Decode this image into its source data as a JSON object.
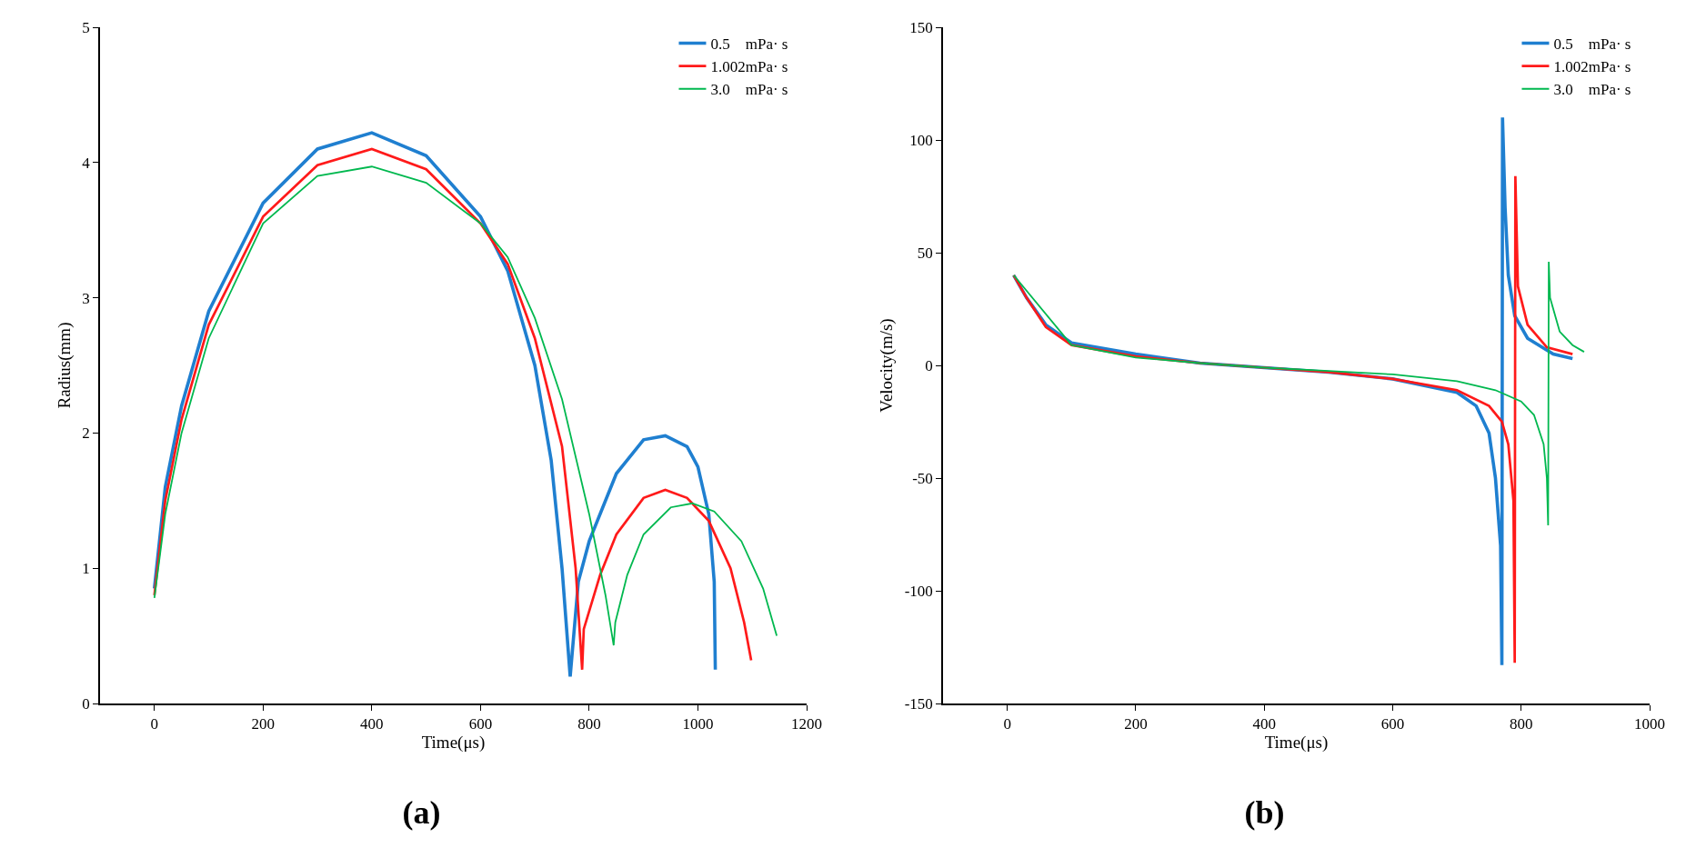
{
  "chart_data": [
    {
      "type": "line",
      "title": "(a)",
      "xlabel": "Time(μs)",
      "ylabel": "Radius(mm)",
      "xlim": [
        -100,
        1200
      ],
      "xticks": [
        0,
        200,
        400,
        600,
        800,
        1000,
        1200
      ],
      "ylim": [
        0,
        5
      ],
      "yticks": [
        0,
        1,
        2,
        3,
        4,
        5
      ],
      "grid": false,
      "legend": "top right",
      "marker": "none",
      "line_style": "solid",
      "series": [
        {
          "name": "0.5    mPa· s",
          "color": "#1f7fd0",
          "x": [
            0,
            20,
            50,
            100,
            200,
            300,
            400,
            500,
            600,
            650,
            700,
            730,
            750,
            765,
            780,
            800,
            850,
            900,
            940,
            980,
            1000,
            1020,
            1030,
            1032
          ],
          "values": [
            0.85,
            1.6,
            2.2,
            2.9,
            3.7,
            4.1,
            4.22,
            4.05,
            3.6,
            3.2,
            2.5,
            1.8,
            1.0,
            0.2,
            0.9,
            1.2,
            1.7,
            1.95,
            1.98,
            1.9,
            1.75,
            1.4,
            0.9,
            0.25
          ]
        },
        {
          "name": "1.002mPa· s",
          "color": "#ff1a1a",
          "x": [
            0,
            20,
            50,
            100,
            200,
            300,
            400,
            500,
            600,
            650,
            700,
            750,
            775,
            787,
            790,
            820,
            850,
            900,
            940,
            980,
            1020,
            1060,
            1085,
            1098
          ],
          "values": [
            0.8,
            1.5,
            2.1,
            2.8,
            3.6,
            3.98,
            4.1,
            3.95,
            3.55,
            3.25,
            2.7,
            1.9,
            1.0,
            0.25,
            0.55,
            0.95,
            1.25,
            1.52,
            1.58,
            1.52,
            1.35,
            1.0,
            0.6,
            0.32
          ]
        },
        {
          "name": "3.0    mPa· s",
          "color": "#00b84f",
          "x": [
            0,
            20,
            50,
            100,
            200,
            300,
            400,
            500,
            600,
            650,
            700,
            750,
            800,
            830,
            845,
            848,
            870,
            900,
            950,
            990,
            1030,
            1080,
            1120,
            1145
          ],
          "values": [
            0.78,
            1.4,
            2.0,
            2.7,
            3.55,
            3.9,
            3.97,
            3.85,
            3.55,
            3.3,
            2.85,
            2.25,
            1.4,
            0.8,
            0.43,
            0.6,
            0.95,
            1.25,
            1.45,
            1.48,
            1.42,
            1.2,
            0.85,
            0.5
          ]
        }
      ]
    },
    {
      "type": "line",
      "title": "(b)",
      "xlabel": "Time(μs)",
      "ylabel": "Velocity(m/s)",
      "xlim": [
        -100,
        1000
      ],
      "xticks": [
        0,
        200,
        400,
        600,
        800,
        1000
      ],
      "ylim": [
        -150,
        150
      ],
      "yticks": [
        -150,
        -100,
        -50,
        0,
        50,
        100,
        150
      ],
      "grid": false,
      "legend": "top right",
      "marker": "none",
      "line_style": "solid",
      "series": [
        {
          "name": "0.5    mPa· s",
          "color": "#1f7fd0",
          "x": [
            10,
            30,
            60,
            100,
            200,
            300,
            400,
            500,
            600,
            700,
            730,
            750,
            760,
            768,
            770,
            771,
            775,
            780,
            790,
            810,
            850,
            880
          ],
          "values": [
            40,
            30,
            18,
            10,
            5,
            1,
            -1,
            -3,
            -6,
            -12,
            -18,
            -30,
            -50,
            -80,
            -133,
            110,
            70,
            40,
            22,
            12,
            5,
            3
          ]
        },
        {
          "name": "1.002mPa· s",
          "color": "#ff1a1a",
          "x": [
            10,
            30,
            60,
            100,
            200,
            300,
            400,
            500,
            600,
            700,
            750,
            770,
            780,
            788,
            790,
            791,
            795,
            810,
            840,
            880
          ],
          "values": [
            40,
            30,
            17,
            9,
            4,
            1,
            -1,
            -3,
            -6,
            -11,
            -18,
            -25,
            -35,
            -60,
            -132,
            84,
            35,
            18,
            8,
            5
          ]
        },
        {
          "name": "3.0    mPa· s",
          "color": "#00b84f",
          "x": [
            10,
            100,
            200,
            300,
            400,
            500,
            600,
            700,
            760,
            800,
            820,
            835,
            840,
            842,
            843,
            845,
            860,
            880,
            898
          ],
          "values": [
            40,
            9,
            3.5,
            1,
            -1,
            -2.5,
            -4,
            -7,
            -11,
            -16,
            -22,
            -35,
            -50,
            -71,
            46,
            30,
            15,
            9,
            6
          ]
        }
      ]
    }
  ]
}
